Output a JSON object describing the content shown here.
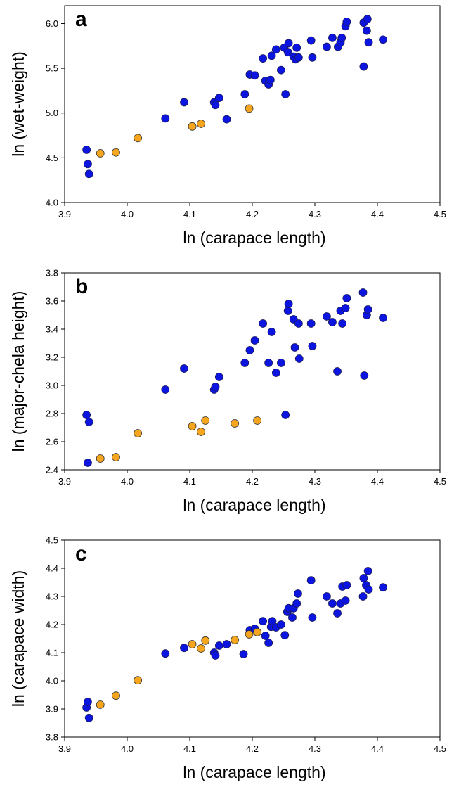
{
  "colors": {
    "blue": "#0c15e0",
    "orange": "#f5a51e",
    "blue_edge": "#1a1a5a",
    "orange_edge": "#333333"
  },
  "chart_data": [
    {
      "type": "scatter",
      "panel": "a",
      "xlabel": "ln (carapace length)",
      "ylabel": "ln (wet-weight)",
      "xlim": [
        3.9,
        4.5
      ],
      "ylim": [
        4.0,
        6.2
      ],
      "xticks": [
        "3.9",
        "4.0",
        "4.1",
        "4.2",
        "4.3",
        "4.4",
        "4.5"
      ],
      "yticks": [
        "4.0",
        "4.5",
        "5.0",
        "5.5",
        "6.0"
      ],
      "grid": false,
      "series": [
        {
          "color": "blue",
          "points": [
            [
              3.935,
              4.59
            ],
            [
              3.937,
              4.43
            ],
            [
              3.939,
              4.32
            ],
            [
              4.061,
              4.94
            ],
            [
              4.091,
              5.12
            ],
            [
              4.139,
              5.12
            ],
            [
              4.141,
              5.09
            ],
            [
              4.147,
              5.17
            ],
            [
              4.159,
              4.93
            ],
            [
              4.188,
              5.21
            ],
            [
              4.196,
              5.43
            ],
            [
              4.204,
              5.42
            ],
            [
              4.217,
              5.61
            ],
            [
              4.221,
              5.36
            ],
            [
              4.226,
              5.32
            ],
            [
              4.229,
              5.37
            ],
            [
              4.231,
              5.64
            ],
            [
              4.238,
              5.71
            ],
            [
              4.246,
              5.48
            ],
            [
              4.251,
              5.73
            ],
            [
              4.253,
              5.21
            ],
            [
              4.257,
              5.68
            ],
            [
              4.258,
              5.78
            ],
            [
              4.266,
              5.63
            ],
            [
              4.269,
              5.6
            ],
            [
              4.271,
              5.73
            ],
            [
              4.274,
              5.62
            ],
            [
              4.294,
              5.81
            ],
            [
              4.296,
              5.62
            ],
            [
              4.319,
              5.74
            ],
            [
              4.328,
              5.84
            ],
            [
              4.337,
              5.74
            ],
            [
              4.341,
              5.79
            ],
            [
              4.343,
              5.84
            ],
            [
              4.349,
              5.97
            ],
            [
              4.351,
              6.02
            ],
            [
              4.378,
              6.01
            ],
            [
              4.378,
              5.52
            ],
            [
              4.383,
              5.92
            ],
            [
              4.384,
              6.05
            ],
            [
              4.386,
              5.79
            ],
            [
              4.409,
              5.82
            ]
          ]
        },
        {
          "color": "orange",
          "points": [
            [
              3.957,
              4.55
            ],
            [
              3.982,
              4.56
            ],
            [
              4.017,
              4.72
            ],
            [
              4.104,
              4.85
            ],
            [
              4.118,
              4.88
            ],
            [
              4.195,
              5.05
            ]
          ]
        }
      ]
    },
    {
      "type": "scatter",
      "panel": "b",
      "xlabel": "ln (carapace length)",
      "ylabel": "ln (major-chela height)",
      "xlim": [
        3.9,
        4.5
      ],
      "ylim": [
        2.4,
        3.8
      ],
      "xticks": [
        "3.9",
        "4.0",
        "4.1",
        "4.2",
        "4.3",
        "4.4",
        "4.5"
      ],
      "yticks": [
        "2.4",
        "2.6",
        "2.8",
        "3.0",
        "3.2",
        "3.4",
        "3.6",
        "3.8"
      ],
      "grid": false,
      "series": [
        {
          "color": "blue",
          "points": [
            [
              3.935,
              2.79
            ],
            [
              3.939,
              2.74
            ],
            [
              3.937,
              2.45
            ],
            [
              4.061,
              2.97
            ],
            [
              4.091,
              3.12
            ],
            [
              4.139,
              2.97
            ],
            [
              4.141,
              2.99
            ],
            [
              4.147,
              3.06
            ],
            [
              4.188,
              3.16
            ],
            [
              4.196,
              3.25
            ],
            [
              4.204,
              3.32
            ],
            [
              4.217,
              3.44
            ],
            [
              4.226,
              3.16
            ],
            [
              4.231,
              3.38
            ],
            [
              4.238,
              3.09
            ],
            [
              4.246,
              3.16
            ],
            [
              4.253,
              2.79
            ],
            [
              4.257,
              3.53
            ],
            [
              4.258,
              3.58
            ],
            [
              4.266,
              3.47
            ],
            [
              4.268,
              3.27
            ],
            [
              4.274,
              3.44
            ],
            [
              4.275,
              3.19
            ],
            [
              4.294,
              3.44
            ],
            [
              4.296,
              3.28
            ],
            [
              4.319,
              3.49
            ],
            [
              4.328,
              3.45
            ],
            [
              4.336,
              3.1
            ],
            [
              4.341,
              3.53
            ],
            [
              4.344,
              3.44
            ],
            [
              4.349,
              3.55
            ],
            [
              4.351,
              3.62
            ],
            [
              4.377,
              3.66
            ],
            [
              4.379,
              3.07
            ],
            [
              4.383,
              3.5
            ],
            [
              4.385,
              3.54
            ],
            [
              4.409,
              3.48
            ]
          ]
        },
        {
          "color": "orange",
          "points": [
            [
              3.957,
              2.48
            ],
            [
              3.982,
              2.49
            ],
            [
              4.017,
              2.66
            ],
            [
              4.104,
              2.71
            ],
            [
              4.118,
              2.67
            ],
            [
              4.125,
              2.75
            ],
            [
              4.172,
              2.73
            ],
            [
              4.208,
              2.75
            ]
          ]
        }
      ]
    },
    {
      "type": "scatter",
      "panel": "c",
      "xlabel": "ln (carapace length)",
      "ylabel": "ln (carapace width)",
      "xlim": [
        3.9,
        4.5
      ],
      "ylim": [
        3.8,
        4.5
      ],
      "xticks": [
        "3.9",
        "4.0",
        "4.1",
        "4.2",
        "4.3",
        "4.4",
        "4.5"
      ],
      "yticks": [
        "3.8",
        "3.9",
        "4.0",
        "4.1",
        "4.2",
        "4.3",
        "4.4",
        "4.5"
      ],
      "grid": false,
      "series": [
        {
          "color": "blue",
          "points": [
            [
              3.935,
              3.905
            ],
            [
              3.937,
              3.925
            ],
            [
              3.939,
              3.868
            ],
            [
              4.061,
              4.097
            ],
            [
              4.091,
              4.117
            ],
            [
              4.139,
              4.1
            ],
            [
              4.141,
              4.09
            ],
            [
              4.147,
              4.125
            ],
            [
              4.159,
              4.13
            ],
            [
              4.186,
              4.095
            ],
            [
              4.196,
              4.18
            ],
            [
              4.204,
              4.185
            ],
            [
              4.217,
              4.212
            ],
            [
              4.221,
              4.16
            ],
            [
              4.226,
              4.135
            ],
            [
              4.23,
              4.192
            ],
            [
              4.232,
              4.212
            ],
            [
              4.238,
              4.19
            ],
            [
              4.246,
              4.2
            ],
            [
              4.252,
              4.162
            ],
            [
              4.256,
              4.245
            ],
            [
              4.258,
              4.258
            ],
            [
              4.264,
              4.225
            ],
            [
              4.266,
              4.258
            ],
            [
              4.271,
              4.275
            ],
            [
              4.273,
              4.31
            ],
            [
              4.294,
              4.357
            ],
            [
              4.296,
              4.225
            ],
            [
              4.319,
              4.3
            ],
            [
              4.328,
              4.275
            ],
            [
              4.336,
              4.24
            ],
            [
              4.341,
              4.275
            ],
            [
              4.344,
              4.335
            ],
            [
              4.349,
              4.285
            ],
            [
              4.351,
              4.34
            ],
            [
              4.377,
              4.3
            ],
            [
              4.378,
              4.365
            ],
            [
              4.382,
              4.34
            ],
            [
              4.385,
              4.39
            ],
            [
              4.386,
              4.325
            ],
            [
              4.409,
              4.332
            ]
          ]
        },
        {
          "color": "orange",
          "points": [
            [
              3.957,
              3.915
            ],
            [
              3.982,
              3.947
            ],
            [
              4.017,
              4.002
            ],
            [
              4.104,
              4.13
            ],
            [
              4.118,
              4.115
            ],
            [
              4.125,
              4.143
            ],
            [
              4.172,
              4.145
            ],
            [
              4.195,
              4.165
            ],
            [
              4.208,
              4.173
            ]
          ]
        }
      ]
    }
  ]
}
